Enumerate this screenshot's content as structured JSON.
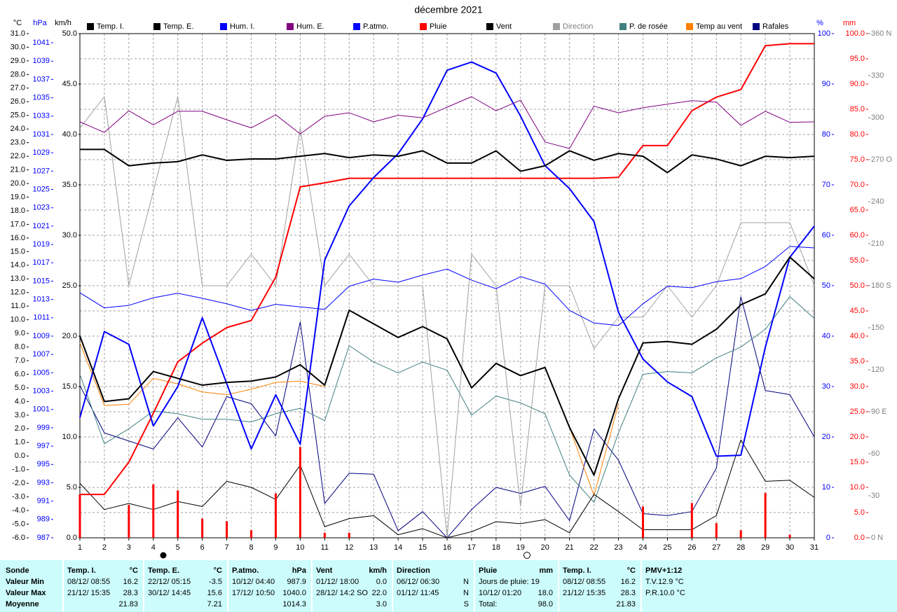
{
  "chart_data": {
    "type": "line",
    "title": "décembre 2021",
    "x": [
      1,
      2,
      3,
      4,
      5,
      6,
      7,
      8,
      9,
      10,
      11,
      12,
      13,
      14,
      15,
      16,
      17,
      18,
      19,
      20,
      21,
      22,
      23,
      24,
      25,
      26,
      27,
      28,
      29,
      30,
      31
    ],
    "xlim": [
      1,
      31
    ],
    "xticks": [
      1,
      2,
      3,
      4,
      5,
      6,
      7,
      8,
      9,
      10,
      11,
      12,
      13,
      14,
      15,
      16,
      17,
      18,
      19,
      20,
      21,
      22,
      23,
      24,
      25,
      26,
      27,
      28,
      29,
      30,
      31
    ],
    "grid": true,
    "grid_axis": "mm",
    "axes": {
      "temp": {
        "label": "°C",
        "color": "#000000",
        "lim": [
          -6,
          31
        ],
        "ticks": [
          {
            "value": -6,
            "label": "-6.0"
          },
          {
            "value": -5,
            "label": "-5.0"
          },
          {
            "value": -4,
            "label": "-4.0"
          },
          {
            "value": -3,
            "label": "-3.0"
          },
          {
            "value": -2,
            "label": "-2.0"
          },
          {
            "value": -1,
            "label": "-1.0"
          },
          {
            "value": 0,
            "label": "0.0"
          },
          {
            "value": 1,
            "label": "1.0"
          },
          {
            "value": 2,
            "label": "2.0"
          },
          {
            "value": 3,
            "label": "3.0"
          },
          {
            "value": 4,
            "label": "4.0"
          },
          {
            "value": 5,
            "label": "5.0"
          },
          {
            "value": 6,
            "label": "6.0"
          },
          {
            "value": 7,
            "label": "7.0"
          },
          {
            "value": 8,
            "label": "8.0"
          },
          {
            "value": 9,
            "label": "9.0"
          },
          {
            "value": 10,
            "label": "10.0"
          },
          {
            "value": 11,
            "label": "11.0"
          },
          {
            "value": 12,
            "label": "12.0"
          },
          {
            "value": 13,
            "label": "13.0"
          },
          {
            "value": 14,
            "label": "14.0"
          },
          {
            "value": 15,
            "label": "15.0"
          },
          {
            "value": 16,
            "label": "16.0"
          },
          {
            "value": 17,
            "label": "17.0"
          },
          {
            "value": 18,
            "label": "18.0"
          },
          {
            "value": 19,
            "label": "19.0"
          },
          {
            "value": 20,
            "label": "20.0"
          },
          {
            "value": 21,
            "label": "21.0"
          },
          {
            "value": 22,
            "label": "22.0"
          },
          {
            "value": 23,
            "label": "23.0"
          },
          {
            "value": 24,
            "label": "24.0"
          },
          {
            "value": 25,
            "label": "25.0"
          },
          {
            "value": 26,
            "label": "26.0"
          },
          {
            "value": 27,
            "label": "27.0"
          },
          {
            "value": 28,
            "label": "28.0"
          },
          {
            "value": 29,
            "label": "29.0"
          },
          {
            "value": 30,
            "label": "30.0"
          },
          {
            "value": 31,
            "label": "31.0"
          }
        ]
      },
      "hpa": {
        "label": "hPa",
        "color": "#0000ff",
        "lim": [
          987,
          1042
        ],
        "ticks": [
          987,
          989,
          991,
          993,
          995,
          997,
          999,
          1001,
          1003,
          1005,
          1007,
          1009,
          1011,
          1013,
          1015,
          1017,
          1019,
          1021,
          1023,
          1025,
          1027,
          1029,
          1031,
          1033,
          1035,
          1037,
          1039,
          1041
        ]
      },
      "kmh": {
        "label": "km/h",
        "color": "#000000",
        "lim": [
          0,
          50
        ],
        "ticks": [
          {
            "value": 0,
            "label": "0.0"
          },
          {
            "value": 5,
            "label": "5.0"
          },
          {
            "value": 10,
            "label": "10.0"
          },
          {
            "value": 15,
            "label": "15.0"
          },
          {
            "value": 20,
            "label": "20.0"
          },
          {
            "value": 25,
            "label": "25.0"
          },
          {
            "value": 30,
            "label": "30.0"
          },
          {
            "value": 35,
            "label": "35.0"
          },
          {
            "value": 40,
            "label": "40.0"
          },
          {
            "value": 45,
            "label": "45.0"
          },
          {
            "value": 50,
            "label": "50.0"
          }
        ]
      },
      "pct": {
        "label": "%",
        "color": "#0000ff",
        "lim": [
          0,
          100
        ],
        "ticks": [
          0,
          10,
          20,
          30,
          40,
          50,
          60,
          70,
          80,
          90,
          100
        ]
      },
      "mm": {
        "label": "mm",
        "color": "#ff0000",
        "lim": [
          0,
          100
        ],
        "ticks": [
          {
            "value": 0,
            "label": "0.0"
          },
          {
            "value": 5,
            "label": "5.0"
          },
          {
            "value": 10,
            "label": "10.0"
          },
          {
            "value": 15,
            "label": "15.0"
          },
          {
            "value": 20,
            "label": "20.0"
          },
          {
            "value": 25,
            "label": "25.0"
          },
          {
            "value": 30,
            "label": "30.0"
          },
          {
            "value": 35,
            "label": "35.0"
          },
          {
            "value": 40,
            "label": "40.0"
          },
          {
            "value": 45,
            "label": "45.0"
          },
          {
            "value": 50,
            "label": "50.0"
          },
          {
            "value": 55,
            "label": "55.0"
          },
          {
            "value": 60,
            "label": "60.0"
          },
          {
            "value": 65,
            "label": "65.0"
          },
          {
            "value": 70,
            "label": "70.0"
          },
          {
            "value": 75,
            "label": "75.0"
          },
          {
            "value": 80,
            "label": "80.0"
          },
          {
            "value": 85,
            "label": "85.0"
          },
          {
            "value": 90,
            "label": "90.0"
          },
          {
            "value": 95,
            "label": "95.0"
          },
          {
            "value": 100,
            "label": "100.0"
          }
        ]
      },
      "dir": {
        "color": "#808080",
        "lim": [
          0,
          360
        ],
        "ticks": [
          {
            "value": 0,
            "label": "0 N"
          },
          30,
          60,
          {
            "value": 90,
            "label": "90 E"
          },
          120,
          150,
          {
            "value": 180,
            "label": "180 S"
          },
          210,
          240,
          {
            "value": 270,
            "label": "270 O"
          },
          300,
          330,
          {
            "value": 360,
            "label": "360 N"
          }
        ]
      }
    },
    "series": [
      {
        "name": "Temp. I.",
        "color": "#000000",
        "axis": "temp",
        "line_width": 2,
        "values": [
          22.5,
          22.5,
          21.3,
          21.5,
          21.6,
          22.1,
          21.7,
          21.8,
          21.8,
          22.0,
          22.2,
          21.9,
          22.1,
          22.0,
          22.4,
          21.5,
          21.5,
          22.4,
          20.9,
          21.3,
          22.4,
          21.7,
          22.2,
          22.0,
          20.8,
          22.1,
          21.8,
          21.3,
          22.0,
          21.9,
          22.0
        ]
      },
      {
        "name": "Temp. E.",
        "color": "#000000",
        "axis": "temp",
        "line_width": 2,
        "values": [
          8.8,
          4.0,
          4.2,
          6.2,
          5.7,
          5.2,
          5.4,
          5.5,
          5.8,
          6.7,
          5.2,
          10.7,
          9.7,
          8.7,
          9.5,
          8.6,
          5.0,
          6.8,
          5.9,
          6.5,
          2.1,
          -1.4,
          4.2,
          8.3,
          8.4,
          8.2,
          9.3,
          11.1,
          11.9,
          14.6,
          13.0
        ]
      },
      {
        "name": "Hum. I.",
        "color": "#0000ff",
        "axis": "pct",
        "line_width": 1,
        "values": [
          48.6,
          45.6,
          46.1,
          47.6,
          48.5,
          47.5,
          46.4,
          45.1,
          46.3,
          45.8,
          45.3,
          49.9,
          51.3,
          50.7,
          52.1,
          53.3,
          51.1,
          49.4,
          51.8,
          50.3,
          45.1,
          42.6,
          42.1,
          46.4,
          49.9,
          49.6,
          50.8,
          51.4,
          53.8,
          57.8,
          57.5
        ]
      },
      {
        "name": "Hum. E.",
        "color": "#800080",
        "axis": "pct",
        "line_width": 1,
        "values": [
          82.5,
          80.4,
          84.7,
          81.9,
          84.6,
          84.6,
          82.9,
          81.3,
          83.9,
          80.1,
          83.6,
          84.3,
          82.5,
          83.8,
          83.3,
          85.4,
          87.5,
          84.7,
          86.8,
          78.5,
          77.2,
          85.6,
          84.3,
          85.3,
          86.0,
          86.7,
          86.4,
          81.8,
          84.6,
          82.4,
          82.5
        ]
      },
      {
        "name": "P.atmo.",
        "color": "#0000ff",
        "axis": "hpa",
        "line_width": 2,
        "values": [
          1000.1,
          1009.5,
          1008.1,
          999.2,
          1003.5,
          1011.0,
          1003.8,
          996.7,
          1002.6,
          997.2,
          1017.3,
          1023.2,
          1026.3,
          1028.9,
          1032.7,
          1038.0,
          1038.9,
          1037.7,
          1033.0,
          1027.6,
          1025.1,
          1021.5,
          1011.6,
          1006.5,
          1004.0,
          1002.4,
          995.9,
          996.0,
          1007.8,
          1017.6,
          1021.0
        ]
      },
      {
        "name": "Pluie",
        "color": "#ff0000",
        "axis": "mm",
        "line_width": 2,
        "values": [
          8.6,
          8.6,
          15.0,
          24.7,
          34.9,
          38.6,
          41.7,
          43.1,
          51.7,
          69.6,
          70.4,
          71.3,
          71.3,
          71.3,
          71.3,
          71.3,
          71.3,
          71.3,
          71.3,
          71.3,
          71.3,
          71.3,
          71.5,
          77.8,
          77.8,
          84.7,
          87.4,
          88.9,
          97.6,
          98.0,
          98.0
        ],
        "bars": [
          8.6,
          0,
          6.5,
          10.6,
          9.4,
          3.8,
          3.3,
          1.5,
          8.8,
          18.0,
          1.0,
          1.0,
          0,
          0,
          0,
          0,
          0,
          0,
          0,
          0,
          0,
          0,
          0,
          6.2,
          0,
          6.9,
          2.9,
          1.5,
          8.9,
          0.6,
          0
        ]
      },
      {
        "name": "Vent",
        "color": "#000000",
        "axis": "kmh",
        "line_width": 1,
        "values": [
          5.4,
          2.8,
          3.4,
          2.8,
          3.6,
          3.1,
          5.6,
          5.0,
          3.8,
          7.2,
          1.1,
          1.9,
          2.2,
          0.3,
          0.9,
          0,
          0.6,
          1.6,
          1.4,
          1.8,
          0.5,
          4.3,
          2.6,
          0.8,
          0.8,
          0.8,
          2.2,
          9.7,
          5.6,
          5.7,
          4.0
        ]
      },
      {
        "name": "Direction",
        "color": "#a0a0a0",
        "axis": "dir",
        "line_width": 1,
        "values": [
          292.5,
          315,
          180,
          247.5,
          315,
          180,
          180,
          202.5,
          180,
          292.5,
          180,
          202.5,
          180,
          180,
          180,
          0,
          202.5,
          180,
          22.5,
          180,
          180,
          135,
          157.5,
          157.5,
          180,
          157.5,
          180,
          225,
          225,
          225,
          180
        ]
      },
      {
        "name": "P. de rosée",
        "color": "#408080",
        "axis": "temp",
        "line_width": 1,
        "values": [
          6.0,
          0.9,
          2.0,
          3.3,
          3.1,
          2.7,
          2.7,
          2.5,
          3.1,
          3.5,
          2.6,
          8.1,
          6.9,
          6.1,
          6.9,
          6.3,
          3.0,
          4.4,
          3.9,
          3.1,
          -1.4,
          -3.4,
          1.7,
          6.0,
          6.2,
          6.1,
          7.2,
          8.0,
          9.3,
          11.7,
          10.1
        ]
      },
      {
        "name": "Temp au vent",
        "color": "#ff8000",
        "axis": "temp",
        "line_width": 1,
        "values": [
          8.3,
          3.7,
          3.8,
          5.7,
          5.3,
          4.7,
          4.5,
          4.9,
          5.4,
          5.5,
          5.1,
          null,
          null,
          null,
          null,
          null,
          null,
          null,
          null,
          6.5,
          2.1,
          -2.9,
          3.8,
          null,
          null,
          null,
          null,
          null,
          null,
          null,
          null
        ]
      },
      {
        "name": "Rafales",
        "color": "#000080",
        "axis": "kmh",
        "line_width": 1,
        "values": [
          15.1,
          10.4,
          9.6,
          8.8,
          11.9,
          9.0,
          14.0,
          13.3,
          10.1,
          21.4,
          3.4,
          6.4,
          6.3,
          0.7,
          2.6,
          0,
          2.8,
          5.0,
          4.4,
          5.1,
          1.7,
          10.8,
          7.7,
          2.4,
          2.2,
          2.6,
          6.9,
          23.9,
          14.6,
          14.2,
          10.0
        ]
      }
    ]
  },
  "table": {
    "row_labels": [
      "Sonde",
      "Valeur Min",
      "Valeur Max",
      "Moyenne"
    ],
    "columns": [
      {
        "title": "Temp. I.",
        "unit": "°C",
        "min": [
          "08/12/ 08:55",
          "16.2"
        ],
        "max": [
          "21/12/ 15:35",
          "28.3"
        ],
        "mean": [
          "21.83"
        ]
      },
      {
        "title": "Temp. E.",
        "unit": "°C",
        "min": [
          "22/12/ 05:15",
          "-3.5"
        ],
        "max": [
          "30/12/ 14:45",
          "15.6"
        ],
        "mean": [
          "7.21"
        ]
      },
      {
        "title": "P.atmo.",
        "unit": "hPa",
        "min": [
          "10/12/ 04:40",
          "987.9"
        ],
        "max": [
          "17/12/ 10:50",
          "1040.0"
        ],
        "mean": [
          "1014.3"
        ]
      },
      {
        "title": "Vent",
        "unit": "km/h",
        "min": [
          "01/12/ 18:00",
          "0.0"
        ],
        "max": [
          "28/12/ 14:2",
          "SO",
          "22.0"
        ],
        "mean": [
          "3.0"
        ]
      },
      {
        "title": "Direction",
        "min": [
          "06/12/ 06:30",
          "N"
        ],
        "max": [
          "01/12/ 11:45",
          "N"
        ],
        "mean": [
          "S"
        ]
      },
      {
        "title": "Pluie",
        "unit": "mm",
        "min": [
          "Jours de pluie: 19"
        ],
        "max": [
          "10/12/ 01:20",
          "18.0"
        ],
        "mean": [
          "Total:",
          "98.0"
        ]
      },
      {
        "title": "Temp. I.",
        "unit": "°C",
        "min": [
          "08/12/ 08:55",
          "16.2"
        ],
        "max": [
          "21/12/ 15:35",
          "28.3"
        ],
        "mean": [
          "21.83"
        ]
      },
      {
        "title": "PMV+1:12",
        "min": [
          "T.V.12.9 °C"
        ],
        "max": [
          "P.R.10.0 °C"
        ]
      }
    ]
  }
}
